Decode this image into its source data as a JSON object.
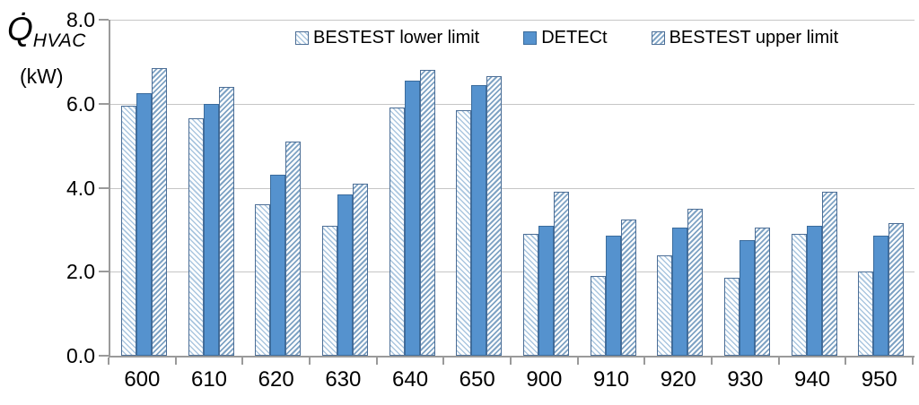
{
  "chart_data": {
    "type": "bar",
    "title": "",
    "y_axis": {
      "label_symbol": "Q̇",
      "label_sub": "HVAC",
      "label_unit": "(kW)",
      "ticks": [
        "0.0",
        "2.0",
        "4.0",
        "6.0",
        "8.0"
      ],
      "range": [
        0,
        8
      ],
      "grid": true
    },
    "x_axis": {
      "label": ""
    },
    "categories": [
      "600",
      "610",
      "620",
      "630",
      "640",
      "650",
      "900",
      "910",
      "920",
      "930",
      "940",
      "950"
    ],
    "series": [
      {
        "name": "BESTEST lower limit",
        "style": "hatch-backslash",
        "values": [
          5.95,
          5.65,
          3.6,
          3.1,
          5.9,
          5.85,
          2.9,
          1.9,
          2.4,
          1.85,
          2.9,
          2.0
        ]
      },
      {
        "name": "DETECt",
        "style": "solid",
        "values": [
          6.25,
          6.0,
          4.3,
          3.85,
          6.55,
          6.45,
          3.1,
          2.85,
          3.05,
          2.75,
          3.1,
          2.85
        ]
      },
      {
        "name": "BESTEST upper limit",
        "style": "hatch-slash",
        "values": [
          6.85,
          6.4,
          5.1,
          4.1,
          6.8,
          6.65,
          3.9,
          3.25,
          3.5,
          3.05,
          3.9,
          3.15
        ]
      }
    ],
    "legend_position": "top-inside",
    "colors": {
      "solid_fill": "#5592ce",
      "solid_border": "#3a6b9c",
      "hatch_lower_line": "#aac6df",
      "hatch_upper_line": "#7fa3c4",
      "hatch_border": "#4c6e96",
      "grid": "#c6c6c6",
      "axis": "#9a9a9a",
      "text": "#000000",
      "background": "#ffffff"
    }
  }
}
